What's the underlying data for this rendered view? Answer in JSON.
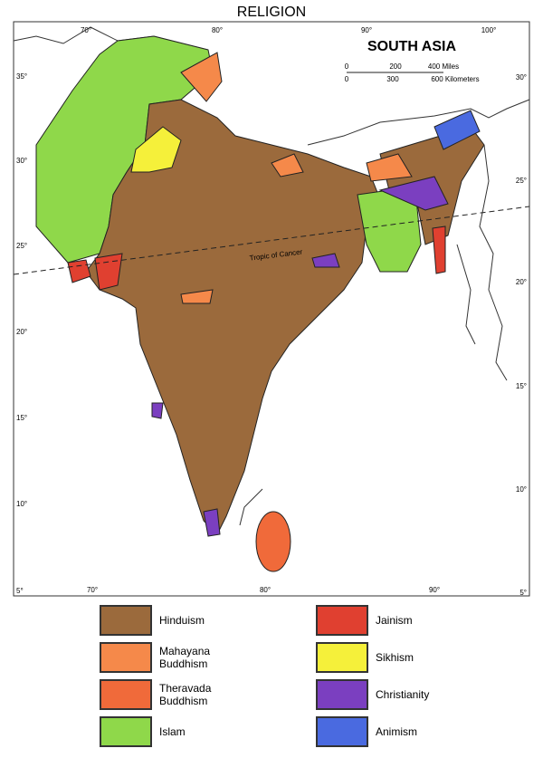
{
  "title": "RELIGION",
  "map": {
    "title": "SOUTH ASIA",
    "tropic_label": "Tropic of Cancer",
    "scale": {
      "miles": [
        "0",
        "200",
        "400 Miles"
      ],
      "km": [
        "0",
        "300",
        "600 Kilometers"
      ]
    },
    "longitude_top": [
      "70°",
      "80°",
      "90°",
      "100°"
    ],
    "longitude_bottom": [
      "70°",
      "80°",
      "90°"
    ],
    "latitude_left": [
      "35°",
      "30°",
      "25°",
      "20°",
      "15°",
      "10°",
      "5°"
    ],
    "latitude_right": [
      "30°",
      "25°",
      "20°",
      "15°",
      "10°",
      "5°"
    ]
  },
  "legend": [
    {
      "label": "Hinduism",
      "color": "#9b6a3c"
    },
    {
      "label": "Mahayana Buddhism",
      "color": "#f5894a"
    },
    {
      "label": "Theravada Buddhism",
      "color": "#f06a3a"
    },
    {
      "label": "Islam",
      "color": "#8fd84a"
    },
    {
      "label": "Jainism",
      "color": "#e04030"
    },
    {
      "label": "Sikhism",
      "color": "#f5f03a"
    },
    {
      "label": "Christianity",
      "color": "#7b3fc0"
    },
    {
      "label": "Animism",
      "color": "#4a6ae0"
    }
  ]
}
